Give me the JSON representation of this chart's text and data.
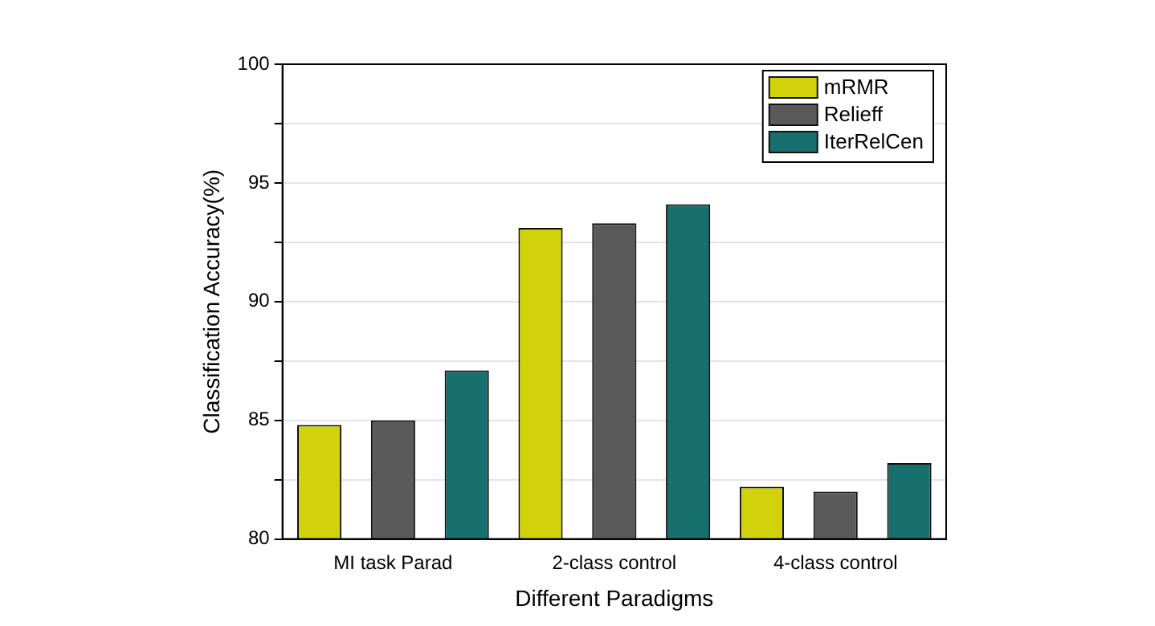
{
  "chart_data": {
    "type": "bar",
    "xlabel": "Different Paradigms",
    "ylabel": "Classification Accuracy(%)",
    "categories": [
      "MI task Parad",
      "2-class control",
      "4-class control"
    ],
    "series": [
      {
        "name": "mRMR",
        "color": "#d2d20a",
        "values": [
          84.8,
          93.1,
          82.2
        ]
      },
      {
        "name": "Relieff",
        "color": "#5a5a5a",
        "values": [
          85.0,
          93.3,
          82.0
        ]
      },
      {
        "name": "IterRelCen",
        "color": "#17706e",
        "values": [
          87.1,
          94.1,
          83.2
        ]
      }
    ],
    "ylim": [
      80,
      100
    ],
    "yticks": [
      80,
      {
        "value": 82.5,
        "label": null
      },
      85,
      {
        "value": 87.5,
        "label": null
      },
      90,
      {
        "value": 92.5,
        "label": null
      },
      95,
      {
        "value": 97.5,
        "label": null
      },
      100
    ],
    "grid": "y",
    "legend": "top right"
  }
}
